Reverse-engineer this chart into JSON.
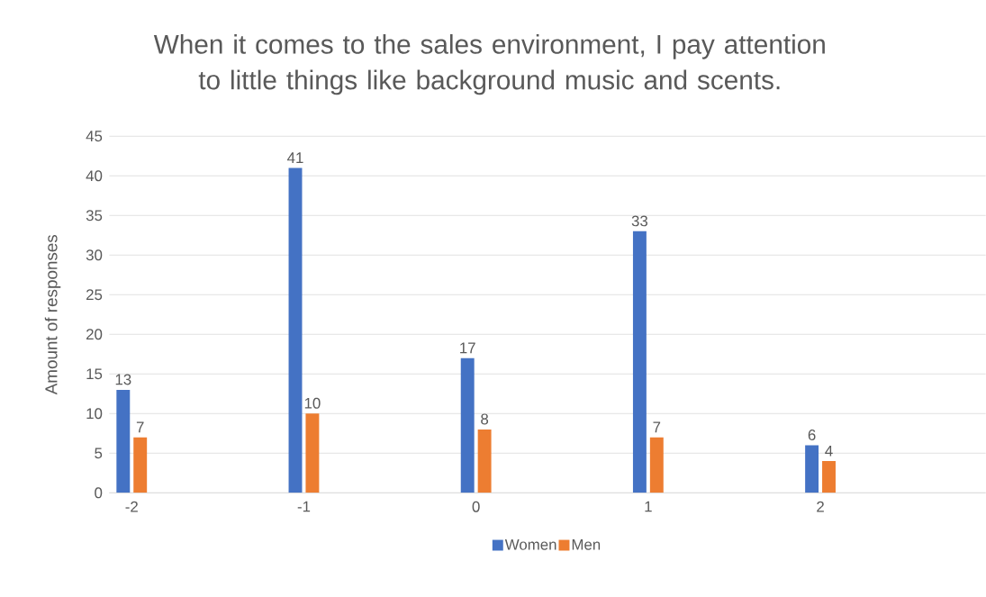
{
  "chart_data": {
    "type": "bar",
    "title": "When it comes to the sales environment, I pay attention to little things like background music and scents.",
    "ylabel": "Amount of responses",
    "categories": [
      "-2",
      "-1",
      "0",
      "1",
      "2"
    ],
    "series": [
      {
        "name": "Women",
        "color": "#4472c4",
        "values": [
          13,
          41,
          17,
          33,
          6
        ]
      },
      {
        "name": "Men",
        "color": "#ed7d31",
        "values": [
          7,
          10,
          8,
          7,
          4
        ]
      }
    ],
    "ylim": [
      0,
      45
    ],
    "yticks": [
      0,
      5,
      10,
      15,
      20,
      25,
      30,
      35,
      40,
      45
    ],
    "grid": "y",
    "legend": "bottom",
    "data_labels": true
  }
}
